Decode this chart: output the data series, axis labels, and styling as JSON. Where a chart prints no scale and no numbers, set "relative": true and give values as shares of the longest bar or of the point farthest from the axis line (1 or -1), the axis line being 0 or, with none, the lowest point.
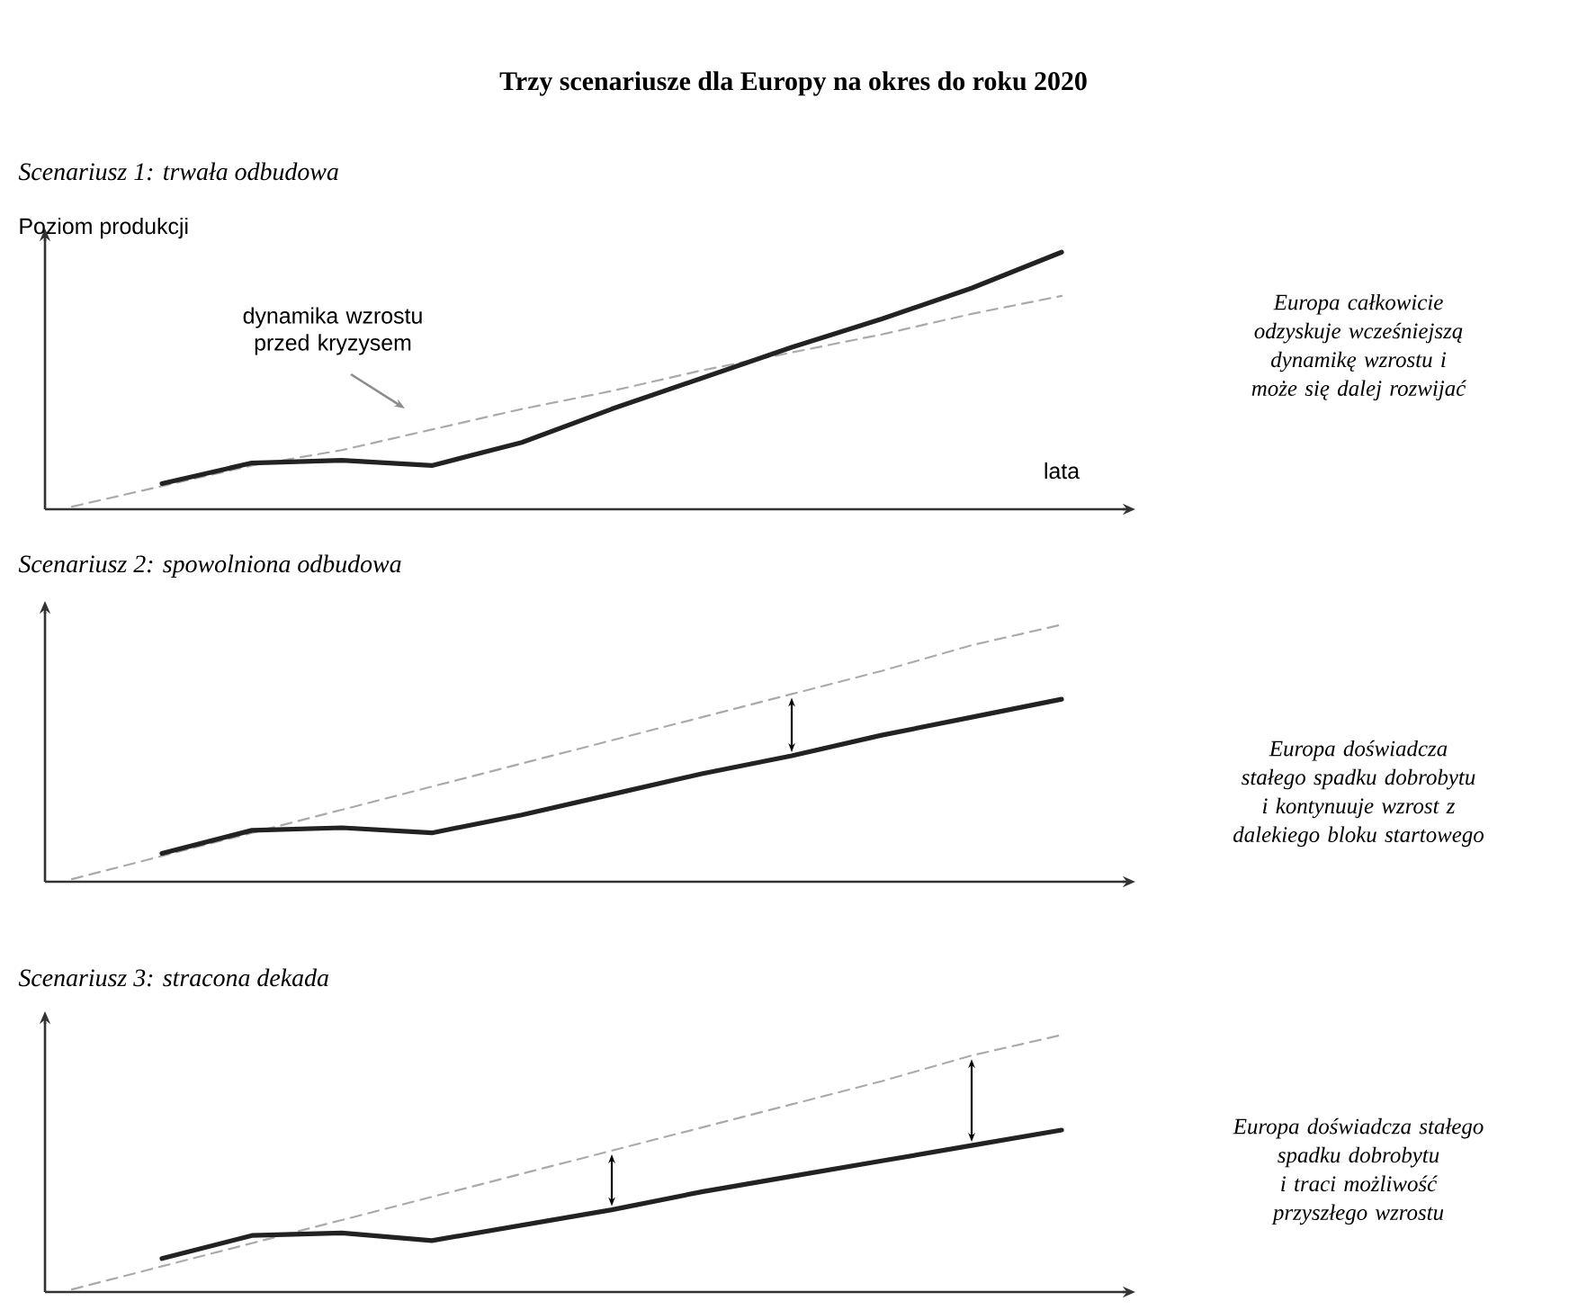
{
  "chart_data": [
    {
      "type": "line",
      "title": "Trzy scenariusze dla Europy na okres do roku 2020",
      "subtitle": "Scenariusz 1: trwała odbudowa",
      "ylabel": "Poziom produkcji",
      "xlabel": "lata",
      "relative": true,
      "categories": [
        null,
        null,
        null,
        null,
        null,
        null,
        null,
        null,
        null,
        null,
        null,
        null
      ],
      "series": [
        {
          "color": "#aaaaaa",
          "line_style": "dashed",
          "values": [
            0.01,
            0.09,
            0.17,
            0.23,
            0.31,
            0.39,
            0.46,
            0.54,
            0.61,
            0.68,
            0.76,
            0.83
          ]
        },
        {
          "color": "#222222",
          "line_style": "solid",
          "values": [
            null,
            0.1,
            0.18,
            0.19,
            0.17,
            0.26,
            0.39,
            0.51,
            0.63,
            0.74,
            0.86,
            1.0
          ]
        }
      ],
      "annotations": [
        "dynamika wzrostu przed kryzysem",
        "Europa całkowicie odzyskuje wcześniejszą dynamikę wzrostu i może się dalej rozwijać"
      ]
    },
    {
      "type": "line",
      "title": "Scenariusz 2: spowolniona odbudowa",
      "relative": true,
      "categories": [
        null,
        null,
        null,
        null,
        null,
        null,
        null,
        null,
        null,
        null,
        null,
        null
      ],
      "series": [
        {
          "color": "#aaaaaa",
          "line_style": "dashed",
          "values": [
            0.01,
            0.1,
            0.19,
            0.28,
            0.37,
            0.46,
            0.55,
            0.64,
            0.73,
            0.82,
            0.92,
            1.0
          ]
        },
        {
          "color": "#222222",
          "line_style": "solid",
          "values": [
            null,
            0.11,
            0.2,
            0.21,
            0.19,
            0.26,
            0.34,
            0.42,
            0.49,
            0.57,
            0.64,
            0.71
          ]
        }
      ],
      "annotations": [
        "Europa doświadcza stałego spadku dobrobytu i kontynuuje wzrost z dalekiego bloku startowego"
      ]
    },
    {
      "type": "line",
      "title": "Scenariusz 3: stracona dekada",
      "relative": true,
      "categories": [
        null,
        null,
        null,
        null,
        null,
        null,
        null,
        null,
        null,
        null,
        null,
        null
      ],
      "series": [
        {
          "color": "#aaaaaa",
          "line_style": "dashed",
          "values": [
            0.01,
            0.1,
            0.19,
            0.28,
            0.37,
            0.46,
            0.55,
            0.64,
            0.73,
            0.82,
            0.92,
            1.0
          ]
        },
        {
          "color": "#222222",
          "line_style": "solid",
          "values": [
            null,
            0.13,
            0.22,
            0.23,
            0.2,
            0.26,
            0.32,
            0.39,
            0.45,
            0.51,
            0.57,
            0.63
          ]
        }
      ],
      "annotations": [
        "Europa doświadcza stałego spadku dobrobytu i traci możliwość przyszłego wzrostu"
      ]
    }
  ]
}
